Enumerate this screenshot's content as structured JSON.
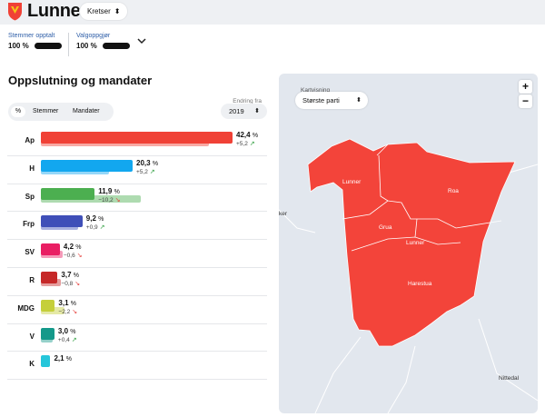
{
  "header": {
    "brand": "Lunner",
    "area_selector": "Kretser",
    "counted_label": "Stemmer opptalt",
    "counted_value": "100 %",
    "settlements_label": "Valgoppgjør",
    "settlements_value": "100 %"
  },
  "section": {
    "title": "Oppslutning og mandater",
    "toggle": [
      "%",
      "Stemmer",
      "Mandater"
    ],
    "change_label": "Endring fra",
    "change_year": "2019"
  },
  "colors": {
    "Ap": "#f04136",
    "H": "#12a7ef",
    "Sp": "#4caf50",
    "Frp": "#3f4fb8",
    "SV": "#e91e63",
    "R": "#c62828",
    "MDG": "#c5cf3a",
    "V": "#14998a",
    "K": "#26c6da",
    "map_red": "#f3443a"
  },
  "chart_data": {
    "type": "bar",
    "unit": "%",
    "categories": [
      "Ap",
      "H",
      "Sp",
      "Frp",
      "SV",
      "R",
      "MDG",
      "V",
      "K"
    ],
    "values": [
      42.4,
      20.3,
      11.9,
      9.2,
      4.2,
      3.7,
      3.1,
      3.0,
      2.1
    ],
    "labels": [
      "42,4",
      "20,3",
      "11,9",
      "9,2",
      "4,2",
      "3,7",
      "3,1",
      "3,0",
      "2,1"
    ],
    "change": [
      5.2,
      5.2,
      -10.2,
      0.9,
      -0.6,
      -0.8,
      -2.2,
      0.4,
      null
    ],
    "change_labels": [
      "+5,2",
      "+5,2",
      "−10,2",
      "+0,9",
      "−0,6",
      "−0,8",
      "−2,2",
      "+0,4",
      ""
    ],
    "change_dir": [
      "up",
      "up",
      "down",
      "up",
      "down",
      "down",
      "down",
      "up",
      ""
    ]
  },
  "map": {
    "view_label": "Kartvisning",
    "view_value": "Største parti",
    "zoom_in": "+",
    "zoom_out": "−",
    "places": [
      "Lunner",
      "Roa",
      "Grua",
      "Lunner",
      "Harestua",
      "Nittedal",
      "ker"
    ]
  }
}
